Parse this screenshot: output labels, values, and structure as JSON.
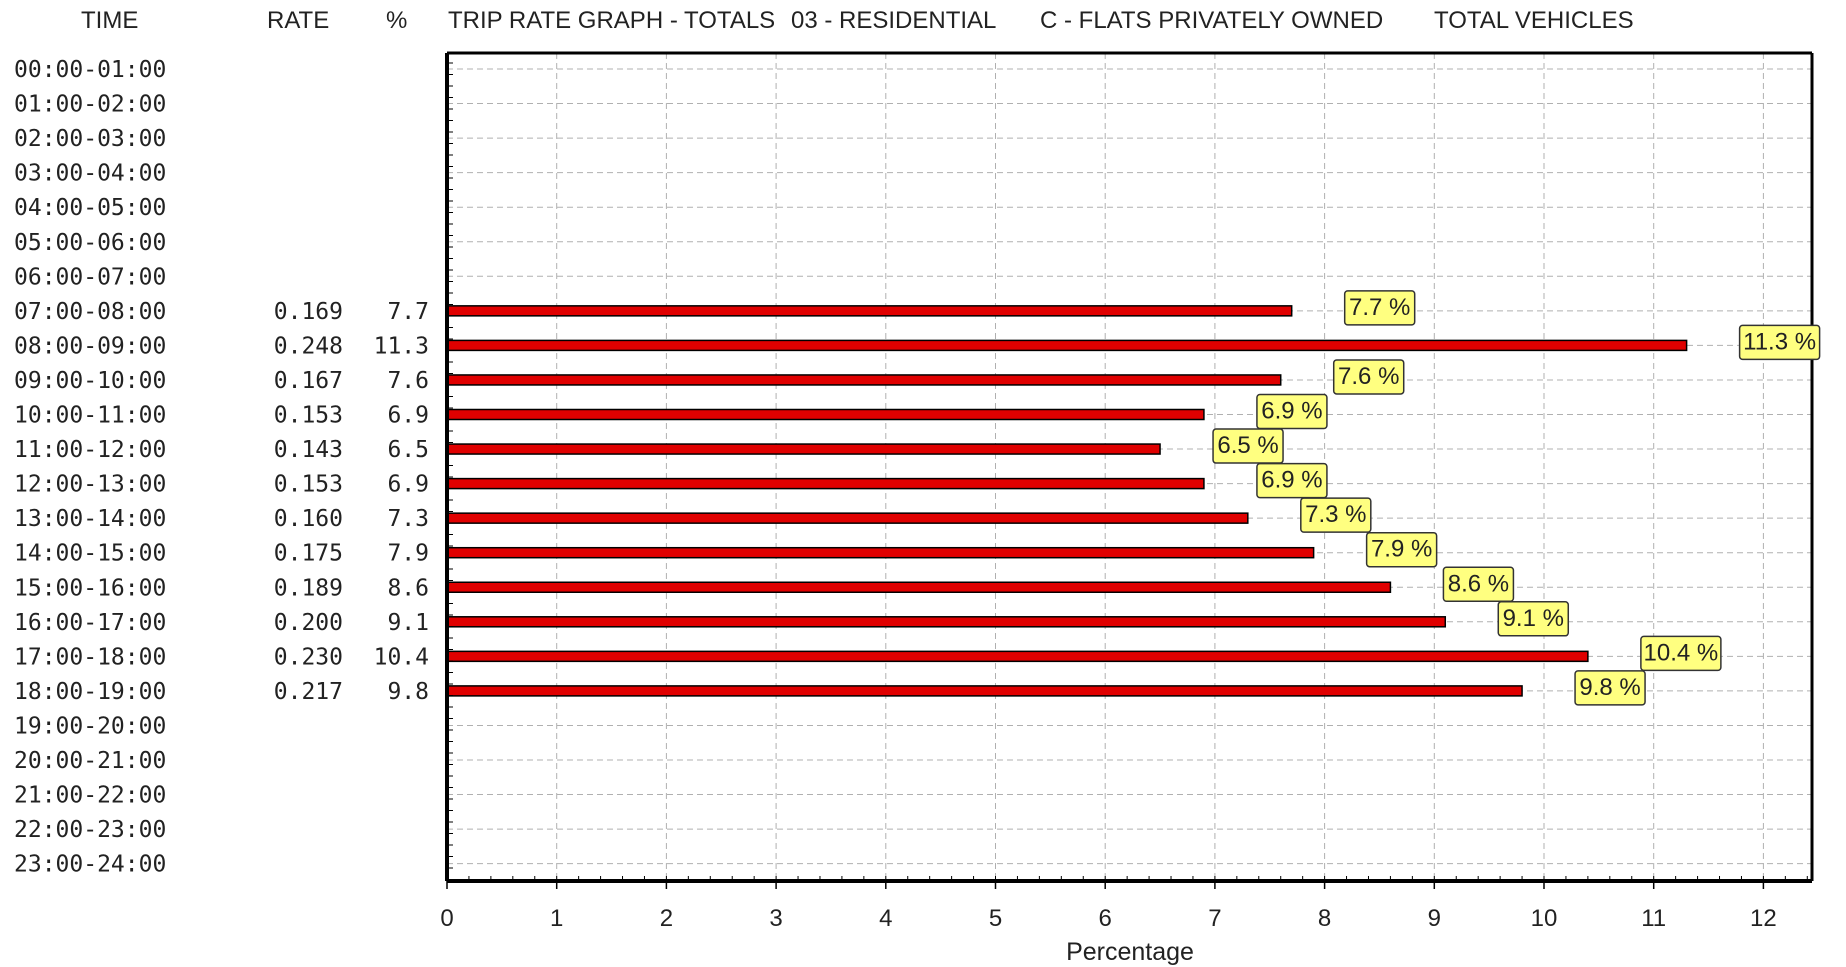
{
  "header": {
    "time": "TIME",
    "rate": "RATE",
    "pct": "%",
    "title": "TRIP RATE GRAPH - TOTALS",
    "category": "03 - RESIDENTIAL",
    "subcategory": "C - FLATS PRIVATELY OWNED",
    "vehicles": "TOTAL VEHICLES"
  },
  "colors": {
    "bar": "#e00000",
    "bar_edge": "#000000",
    "label_bg": "#ffff80"
  },
  "chart_data": {
    "type": "bar",
    "orientation": "horizontal",
    "xlabel": "Percentage",
    "xlim": [
      0,
      12.5
    ],
    "xticks": [
      0,
      1,
      2,
      3,
      4,
      5,
      6,
      7,
      8,
      9,
      10,
      11,
      12
    ],
    "grid": true,
    "categories": [
      "00:00-01:00",
      "01:00-02:00",
      "02:00-03:00",
      "03:00-04:00",
      "04:00-05:00",
      "05:00-06:00",
      "06:00-07:00",
      "07:00-08:00",
      "08:00-09:00",
      "09:00-10:00",
      "10:00-11:00",
      "11:00-12:00",
      "12:00-13:00",
      "13:00-14:00",
      "14:00-15:00",
      "15:00-16:00",
      "16:00-17:00",
      "17:00-18:00",
      "18:00-19:00",
      "19:00-20:00",
      "20:00-21:00",
      "21:00-22:00",
      "22:00-23:00",
      "23:00-24:00"
    ],
    "rates": [
      "",
      "",
      "",
      "",
      "",
      "",
      "",
      "0.169",
      "0.248",
      "0.167",
      "0.153",
      "0.143",
      "0.153",
      "0.160",
      "0.175",
      "0.189",
      "0.200",
      "0.230",
      "0.217",
      "",
      "",
      "",
      "",
      ""
    ],
    "pct_text": [
      "",
      "",
      "",
      "",
      "",
      "",
      "",
      "7.7",
      "11.3",
      "7.6",
      "6.9",
      "6.5",
      "6.9",
      "7.3",
      "7.9",
      "8.6",
      "9.1",
      "10.4",
      "9.8",
      "",
      "",
      "",
      "",
      ""
    ],
    "values": [
      null,
      null,
      null,
      null,
      null,
      null,
      null,
      7.7,
      11.3,
      7.6,
      6.9,
      6.5,
      6.9,
      7.3,
      7.9,
      8.6,
      9.1,
      10.4,
      9.8,
      null,
      null,
      null,
      null,
      null
    ],
    "data_labels": [
      "",
      "",
      "",
      "",
      "",
      "",
      "",
      "7.7 %",
      "11.3 %",
      "7.6 %",
      "6.9 %",
      "6.5 %",
      "6.9 %",
      "7.3 %",
      "7.9 %",
      "8.6 %",
      "9.1 %",
      "10.4 %",
      "9.8 %",
      "",
      "",
      "",
      "",
      ""
    ]
  }
}
